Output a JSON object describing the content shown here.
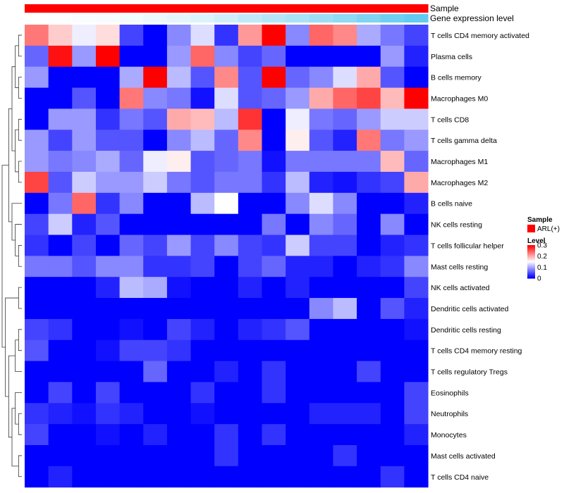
{
  "chart_data": {
    "type": "heatmap",
    "title": "",
    "column_annotations": [
      {
        "name": "Sample",
        "kind": "categorical",
        "value": "ARL(+)",
        "color": "#ff0000"
      },
      {
        "name": "Gene expression level",
        "kind": "continuous_gradient",
        "color_low": "#ffffff",
        "color_high": "#5bc8f0"
      }
    ],
    "rows": [
      "T cells CD4 memory activated",
      "Plasma cells",
      "B cells memory",
      "Macrophages M0",
      "T cells CD8",
      "T cells gamma delta",
      "Macrophages M1",
      "Macrophages M2",
      "B cells naive",
      "NK cells resting",
      "T cells follicular helper",
      "Mast cells resting",
      "NK cells activated",
      "Dendritic cells activated",
      "Dendritic cells resting",
      "T cells CD4 memory resting",
      "T cells regulatory  Tregs",
      "Eosinophils",
      "Neutrophils",
      "Monocytes",
      "Mast cells activated",
      "T cells CD4 naive"
    ],
    "values": [
      [
        0.23,
        0.18,
        0.14,
        0.17,
        0.04,
        0.0,
        0.08,
        0.13,
        0.03,
        0.21,
        0.3,
        0.08,
        0.24,
        0.22,
        0.1,
        0.07,
        0.04
      ],
      [
        0.06,
        0.29,
        0.09,
        0.3,
        0.0,
        0.0,
        0.09,
        0.24,
        0.08,
        0.04,
        0.06,
        0.0,
        0.0,
        0.0,
        0.0,
        0.09,
        0.02
      ],
      [
        0.09,
        0.0,
        0.0,
        0.0,
        0.1,
        0.3,
        0.11,
        0.05,
        0.22,
        0.05,
        0.3,
        0.06,
        0.08,
        0.13,
        0.2,
        0.05,
        0.0
      ],
      [
        0.0,
        0.0,
        0.05,
        0.0,
        0.23,
        0.08,
        0.07,
        0.01,
        0.13,
        0.05,
        0.06,
        0.09,
        0.2,
        0.24,
        0.26,
        0.19,
        0.3
      ],
      [
        0.0,
        0.09,
        0.09,
        0.03,
        0.07,
        0.05,
        0.2,
        0.19,
        0.11,
        0.27,
        0.0,
        0.14,
        0.07,
        0.06,
        0.09,
        0.12,
        0.12
      ],
      [
        0.09,
        0.04,
        0.09,
        0.05,
        0.05,
        0.0,
        0.08,
        0.11,
        0.06,
        0.22,
        0.0,
        0.16,
        0.05,
        0.02,
        0.23,
        0.07,
        0.09
      ],
      [
        0.09,
        0.07,
        0.08,
        0.1,
        0.06,
        0.14,
        0.16,
        0.05,
        0.06,
        0.07,
        0.01,
        0.07,
        0.07,
        0.07,
        0.07,
        0.19,
        0.06
      ],
      [
        0.26,
        0.05,
        0.12,
        0.09,
        0.09,
        0.12,
        0.07,
        0.05,
        0.07,
        0.07,
        0.03,
        0.11,
        0.02,
        0.01,
        0.03,
        0.04,
        0.2
      ],
      [
        0.0,
        0.07,
        0.24,
        0.03,
        0.08,
        0.0,
        0.0,
        0.11,
        0.15,
        0.0,
        0.0,
        0.08,
        0.13,
        0.08,
        0.0,
        0.0,
        0.02
      ],
      [
        0.04,
        0.12,
        0.02,
        0.05,
        0.0,
        0.0,
        0.0,
        0.0,
        0.0,
        0.0,
        0.07,
        0.0,
        0.08,
        0.06,
        0.0,
        0.08,
        0.0
      ],
      [
        0.03,
        0.0,
        0.04,
        0.0,
        0.06,
        0.04,
        0.09,
        0.04,
        0.08,
        0.04,
        0.03,
        0.12,
        0.04,
        0.04,
        0.0,
        0.02,
        0.03
      ],
      [
        0.07,
        0.07,
        0.05,
        0.08,
        0.08,
        0.03,
        0.03,
        0.04,
        0.0,
        0.04,
        0.06,
        0.02,
        0.02,
        0.0,
        0.02,
        0.03,
        0.08
      ],
      [
        0.0,
        0.0,
        0.0,
        0.02,
        0.11,
        0.1,
        0.01,
        0.0,
        0.0,
        0.02,
        0.0,
        0.02,
        0.0,
        0.0,
        0.0,
        0.0,
        0.04
      ],
      [
        0.0,
        0.0,
        0.0,
        0.0,
        0.0,
        0.0,
        0.0,
        0.0,
        0.0,
        0.0,
        0.0,
        0.0,
        0.08,
        0.11,
        0.0,
        0.05,
        0.02
      ],
      [
        0.04,
        0.03,
        0.0,
        0.0,
        0.01,
        0.0,
        0.04,
        0.02,
        0.0,
        0.02,
        0.03,
        0.05,
        0.0,
        0.0,
        0.0,
        0.0,
        0.01
      ],
      [
        0.05,
        0.0,
        0.0,
        0.01,
        0.04,
        0.04,
        0.03,
        0.0,
        0.0,
        0.0,
        0.0,
        0.0,
        0.0,
        0.0,
        0.0,
        0.0,
        0.0
      ],
      [
        0.0,
        0.0,
        0.0,
        0.0,
        0.0,
        0.06,
        0.0,
        0.0,
        0.02,
        0.0,
        0.03,
        0.0,
        0.0,
        0.0,
        0.04,
        0.0,
        0.0
      ],
      [
        0.0,
        0.04,
        0.0,
        0.04,
        0.0,
        0.0,
        0.0,
        0.03,
        0.0,
        0.0,
        0.03,
        0.0,
        0.0,
        0.0,
        0.0,
        0.0,
        0.04
      ],
      [
        0.03,
        0.02,
        0.01,
        0.03,
        0.02,
        0.0,
        0.0,
        0.01,
        0.0,
        0.0,
        0.0,
        0.0,
        0.02,
        0.02,
        0.02,
        0.0,
        0.04
      ],
      [
        0.04,
        0.0,
        0.0,
        0.01,
        0.0,
        0.02,
        0.0,
        0.0,
        0.03,
        0.0,
        0.03,
        0.0,
        0.0,
        0.0,
        0.0,
        0.0,
        0.02
      ],
      [
        0.0,
        0.0,
        0.0,
        0.0,
        0.0,
        0.0,
        0.0,
        0.0,
        0.03,
        0.0,
        0.0,
        0.0,
        0.0,
        0.03,
        0.0,
        0.0,
        0.0
      ],
      [
        0.0,
        0.02,
        0.0,
        0.0,
        0.0,
        0.0,
        0.0,
        0.0,
        0.0,
        0.0,
        0.0,
        0.0,
        0.0,
        0.0,
        0.0,
        0.03,
        0.0
      ]
    ],
    "expression_level_gradient": [
      0.0,
      0.02,
      0.03,
      0.05,
      0.08,
      0.12,
      0.17,
      0.22,
      0.3,
      0.38,
      0.45,
      0.52,
      0.6,
      0.68,
      0.78,
      0.88,
      0.95
    ],
    "color_scale": {
      "low": "#0000ff",
      "mid": "#ffffff",
      "high": "#ff0000",
      "range": [
        0,
        0.3
      ]
    },
    "legend": {
      "sample_title": "Sample",
      "sample_label": "ARL(+)",
      "sample_color": "#ff0000",
      "level_title": "Level",
      "level_ticks": [
        {
          "value": 0.3,
          "label": "0.3"
        },
        {
          "value": 0.2,
          "label": "0.2"
        },
        {
          "value": 0.1,
          "label": "0.1"
        },
        {
          "value": 0.0,
          "label": "0"
        }
      ],
      "placement": "right"
    },
    "dendrogram": {
      "side": "left",
      "clustered": "rows"
    }
  }
}
